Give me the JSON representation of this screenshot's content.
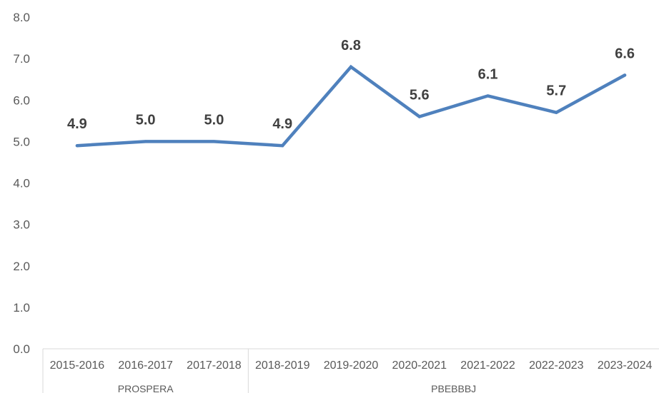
{
  "chart_data": {
    "type": "line",
    "title": "",
    "xlabel": "",
    "ylabel": "",
    "ylim": [
      0,
      8
    ],
    "y_ticks": [
      "0.0",
      "1.0",
      "2.0",
      "3.0",
      "4.0",
      "5.0",
      "6.0",
      "7.0",
      "8.0"
    ],
    "categories": [
      "2015-2016",
      "2016-2017",
      "2017-2018",
      "2018-2019",
      "2019-2020",
      "2020-2021",
      "2021-2022",
      "2022-2023",
      "2023-2024"
    ],
    "groups": [
      {
        "label": "PROSPERA",
        "count": 3
      },
      {
        "label": "PBEBBBJ",
        "count": 6
      }
    ],
    "series": [
      {
        "values": [
          4.9,
          5.0,
          5.0,
          4.9,
          6.8,
          5.6,
          6.1,
          5.7,
          6.6
        ],
        "data_labels": [
          "4.9",
          "5.0",
          "5.0",
          "4.9",
          "6.8",
          "5.6",
          "6.1",
          "5.7",
          "6.6"
        ],
        "color": "#4f81bd"
      }
    ],
    "grid": false,
    "legend": "none"
  }
}
